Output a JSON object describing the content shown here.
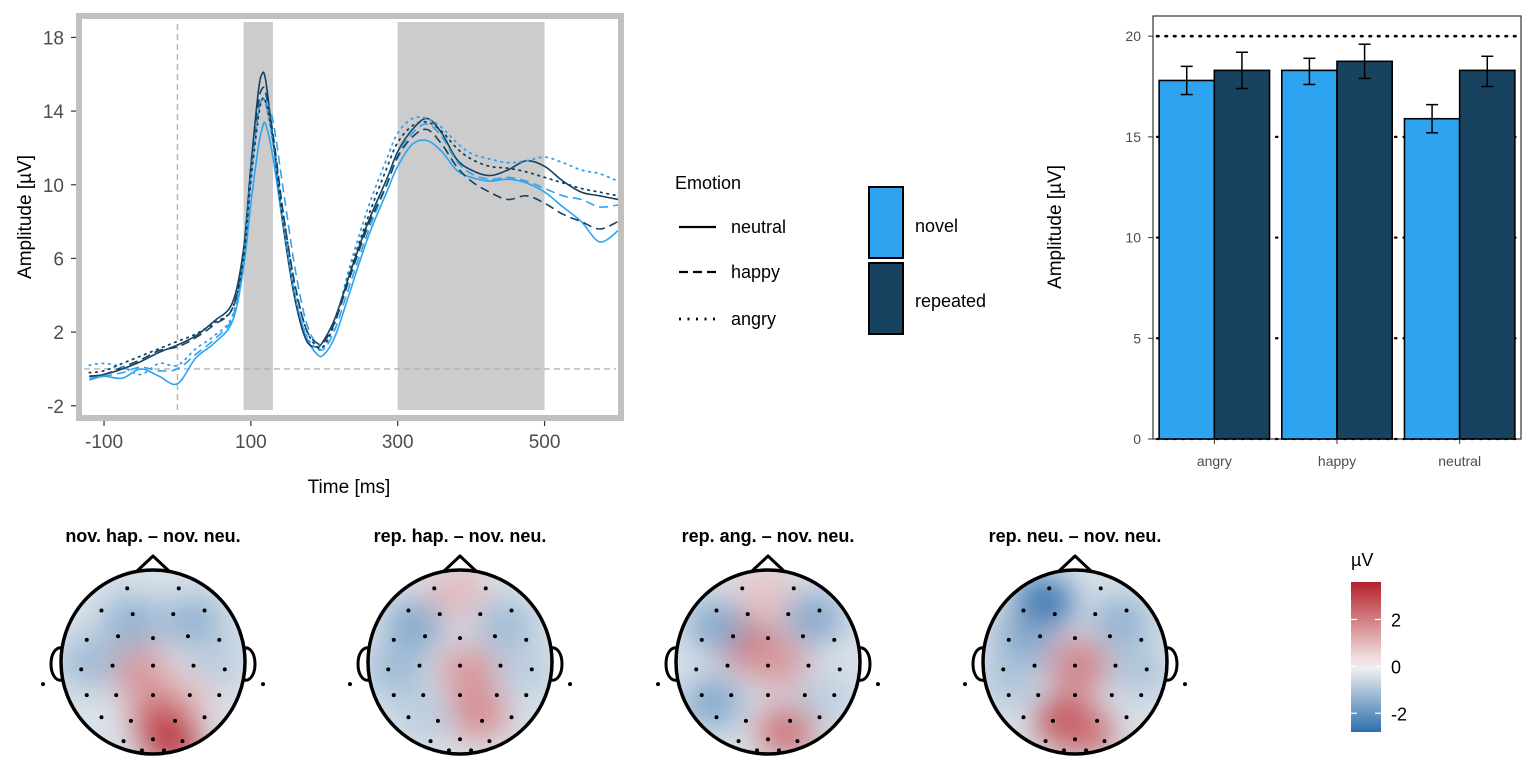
{
  "chart_data": [
    {
      "type": "line",
      "xlabel": "Time [ms]",
      "ylabel": "Amplitude [µV]",
      "xlim": [
        -130,
        600
      ],
      "ylim": [
        -2.5,
        19
      ],
      "x_ticks": [
        "-100",
        "100",
        "300",
        "500"
      ],
      "x_tick_values": [
        -100,
        100,
        300,
        500
      ],
      "y_ticks": [
        "-2",
        "2",
        "6",
        "10",
        "14",
        "18"
      ],
      "y_tick_values": [
        -2,
        2,
        6,
        10,
        14,
        18
      ],
      "shaded_windows": [
        [
          90,
          130
        ],
        [
          300,
          500
        ]
      ],
      "reference_lines": {
        "x": 0,
        "y": 0
      },
      "x": [
        -120,
        -100,
        -75,
        -50,
        -25,
        0,
        25,
        50,
        75,
        90,
        100,
        110,
        115,
        120,
        130,
        145,
        160,
        175,
        190,
        200,
        215,
        235,
        260,
        285,
        300,
        320,
        340,
        360,
        380,
        400,
        425,
        450,
        475,
        500,
        525,
        550,
        575,
        600
      ],
      "series": [
        {
          "emotion": "neutral",
          "condition": "novel",
          "color": "#2ea3ef",
          "dash": "solid",
          "values": [
            -0.6,
            -0.4,
            -0.5,
            0.0,
            -0.4,
            -0.8,
            0.6,
            1.4,
            2.6,
            5.5,
            9.0,
            12.0,
            13.0,
            13.3,
            11.5,
            7.5,
            4.0,
            1.8,
            0.8,
            0.8,
            1.8,
            4.2,
            7.2,
            9.6,
            11.0,
            12.2,
            12.4,
            11.8,
            10.8,
            10.4,
            10.2,
            10.3,
            10.1,
            9.6,
            8.8,
            8.0,
            6.9,
            7.5
          ]
        },
        {
          "emotion": "neutral",
          "condition": "repeated",
          "color": "#174361",
          "dash": "solid",
          "values": [
            -0.4,
            -0.3,
            0.0,
            0.4,
            0.9,
            1.3,
            1.8,
            2.6,
            3.6,
            6.5,
            11.0,
            15.0,
            16.0,
            15.7,
            12.5,
            7.5,
            3.8,
            1.6,
            1.2,
            1.6,
            2.8,
            5.2,
            8.0,
            10.3,
            11.8,
            13.0,
            13.6,
            12.8,
            11.4,
            10.8,
            10.5,
            10.8,
            11.3,
            11.0,
            10.2,
            9.6,
            9.4,
            9.2
          ]
        },
        {
          "emotion": "happy",
          "condition": "novel",
          "color": "#2ea3ef",
          "dash": "dashed",
          "values": [
            -0.5,
            -0.4,
            -0.2,
            0.1,
            -0.1,
            0.0,
            0.8,
            1.6,
            2.8,
            6.0,
            10.5,
            14.0,
            14.6,
            14.5,
            13.5,
            9.5,
            5.5,
            2.6,
            1.3,
            1.1,
            2.2,
            4.6,
            7.5,
            10.0,
            11.6,
            12.8,
            13.3,
            12.6,
            11.3,
            10.6,
            10.3,
            10.4,
            10.2,
            9.8,
            9.4,
            9.2,
            8.8,
            8.9
          ]
        },
        {
          "emotion": "happy",
          "condition": "repeated",
          "color": "#174361",
          "dash": "dashed",
          "values": [
            -0.4,
            -0.3,
            0.1,
            0.5,
            1.0,
            1.2,
            1.7,
            2.4,
            3.3,
            6.2,
            11.0,
            14.4,
            15.2,
            15.0,
            12.8,
            8.2,
            4.6,
            2.2,
            1.4,
            1.5,
            2.6,
            5.0,
            7.8,
            10.0,
            11.5,
            12.6,
            13.0,
            12.2,
            11.0,
            10.2,
            9.6,
            9.2,
            9.4,
            9.0,
            8.4,
            8.0,
            7.6,
            8.0
          ]
        },
        {
          "emotion": "angry",
          "condition": "novel",
          "color": "#2ea3ef",
          "dash": "dotted",
          "values": [
            0.2,
            0.3,
            0.1,
            -0.3,
            0.3,
            0.2,
            1.1,
            1.8,
            2.9,
            6.0,
            10.5,
            13.8,
            14.6,
            14.4,
            12.2,
            7.6,
            4.0,
            1.9,
            1.1,
            1.2,
            2.6,
            5.6,
            8.8,
            11.4,
            12.8,
            13.6,
            13.6,
            13.1,
            12.3,
            11.7,
            11.4,
            11.2,
            11.3,
            11.5,
            11.2,
            10.8,
            10.6,
            10.2
          ]
        },
        {
          "emotion": "angry",
          "condition": "repeated",
          "color": "#174361",
          "dash": "dotted",
          "values": [
            -0.2,
            -0.1,
            0.3,
            0.7,
            1.1,
            1.5,
            1.9,
            2.5,
            3.3,
            6.0,
            10.2,
            13.6,
            14.6,
            14.5,
            12.5,
            8.2,
            4.5,
            2.2,
            1.2,
            1.3,
            2.6,
            5.3,
            8.3,
            10.9,
            12.3,
            13.2,
            13.4,
            12.9,
            12.0,
            11.4,
            11.0,
            10.9,
            10.7,
            10.4,
            10.1,
            9.8,
            9.6,
            9.4
          ]
        }
      ]
    },
    {
      "type": "bar",
      "ylabel": "Amplitude [µV]",
      "categories": [
        "angry",
        "happy",
        "neutral"
      ],
      "ylim": [
        0,
        21
      ],
      "y_ticks": [
        "0",
        "5",
        "10",
        "15",
        "20"
      ],
      "y_tick_values": [
        0,
        5,
        10,
        15,
        20
      ],
      "reference_line_y": 20,
      "series": [
        {
          "condition": "novel",
          "color": "#2ea3ef",
          "values": [
            17.8,
            18.3,
            15.9
          ],
          "error_low": [
            17.1,
            17.6,
            15.2
          ],
          "error_high": [
            18.5,
            18.9,
            16.6
          ]
        },
        {
          "condition": "repeated",
          "color": "#174361",
          "values": [
            18.3,
            18.75,
            18.3
          ],
          "error_low": [
            17.4,
            17.9,
            17.5
          ],
          "error_high": [
            19.2,
            19.6,
            19.0
          ]
        }
      ]
    },
    {
      "type": "heatmap",
      "kind": "scalp topography",
      "panels": [
        {
          "title": "nov. hap. – nov. neu.",
          "blobs": [
            {
              "fx": 0.42,
              "fy": 0.55,
              "value": 1.6
            },
            {
              "fx": 0.68,
              "fy": 0.68,
              "value": 0.8
            },
            {
              "fx": 0.38,
              "fy": 0.28,
              "value": -1.4
            },
            {
              "fx": 0.72,
              "fy": 0.28,
              "value": -1.4
            },
            {
              "fx": 0.15,
              "fy": 0.5,
              "value": -1.2
            },
            {
              "fx": 0.85,
              "fy": 0.5,
              "value": -0.8
            },
            {
              "fx": 0.55,
              "fy": 0.8,
              "value": 2.4
            },
            {
              "fx": 0.6,
              "fy": 0.92,
              "value": 3.2
            }
          ]
        },
        {
          "title": "rep. hap. – nov. neu.",
          "blobs": [
            {
              "fx": 0.48,
              "fy": 0.12,
              "value": 1.0
            },
            {
              "fx": 0.25,
              "fy": 0.3,
              "value": -1.6
            },
            {
              "fx": 0.75,
              "fy": 0.3,
              "value": -1.2
            },
            {
              "fx": 0.55,
              "fy": 0.55,
              "value": 1.6
            },
            {
              "fx": 0.6,
              "fy": 0.78,
              "value": 1.8
            },
            {
              "fx": 0.15,
              "fy": 0.55,
              "value": -1.2
            },
            {
              "fx": 0.85,
              "fy": 0.55,
              "value": -0.8
            },
            {
              "fx": 0.3,
              "fy": 0.8,
              "value": -0.8
            }
          ]
        },
        {
          "title": "rep. ang. – nov. neu.",
          "blobs": [
            {
              "fx": 0.48,
              "fy": 0.12,
              "value": 0.8
            },
            {
              "fx": 0.4,
              "fy": 0.4,
              "value": 2.4
            },
            {
              "fx": 0.55,
              "fy": 0.5,
              "value": 1.6
            },
            {
              "fx": 0.22,
              "fy": 0.3,
              "value": -1.6
            },
            {
              "fx": 0.75,
              "fy": 0.26,
              "value": -1.6
            },
            {
              "fx": 0.2,
              "fy": 0.72,
              "value": -1.6
            },
            {
              "fx": 0.8,
              "fy": 0.7,
              "value": -0.8
            },
            {
              "fx": 0.6,
              "fy": 0.88,
              "value": 2.2
            }
          ]
        },
        {
          "title": "rep. neu. – nov. neu.",
          "blobs": [
            {
              "fx": 0.33,
              "fy": 0.18,
              "value": -3.0
            },
            {
              "fx": 0.22,
              "fy": 0.38,
              "value": -1.6
            },
            {
              "fx": 0.75,
              "fy": 0.28,
              "value": -1.4
            },
            {
              "fx": 0.52,
              "fy": 0.52,
              "value": 2.0
            },
            {
              "fx": 0.45,
              "fy": 0.82,
              "value": 3.2
            },
            {
              "fx": 0.55,
              "fy": 0.88,
              "value": 2.4
            },
            {
              "fx": 0.85,
              "fy": 0.55,
              "value": -1.0
            },
            {
              "fx": 0.15,
              "fy": 0.6,
              "value": -1.0
            }
          ]
        }
      ],
      "colorbar": {
        "title": "µV",
        "ticks": [
          "2",
          "0",
          "-2"
        ],
        "tick_values": [
          2,
          0,
          -2
        ],
        "range": [
          -2.8,
          3.6
        ],
        "low_color": "#2c6eae",
        "mid_color": "#f6f4f2",
        "high_color": "#b5202b"
      }
    }
  ],
  "legend": {
    "emotion_title": "Emotion",
    "emotion_items": [
      {
        "label": "neutral",
        "dash": "solid"
      },
      {
        "label": "happy",
        "dash": "dashed"
      },
      {
        "label": "angry",
        "dash": "dotted"
      }
    ],
    "condition_items": [
      {
        "label": "novel",
        "color": "#2ea3ef"
      },
      {
        "label": "repeated",
        "color": "#174361"
      }
    ]
  }
}
